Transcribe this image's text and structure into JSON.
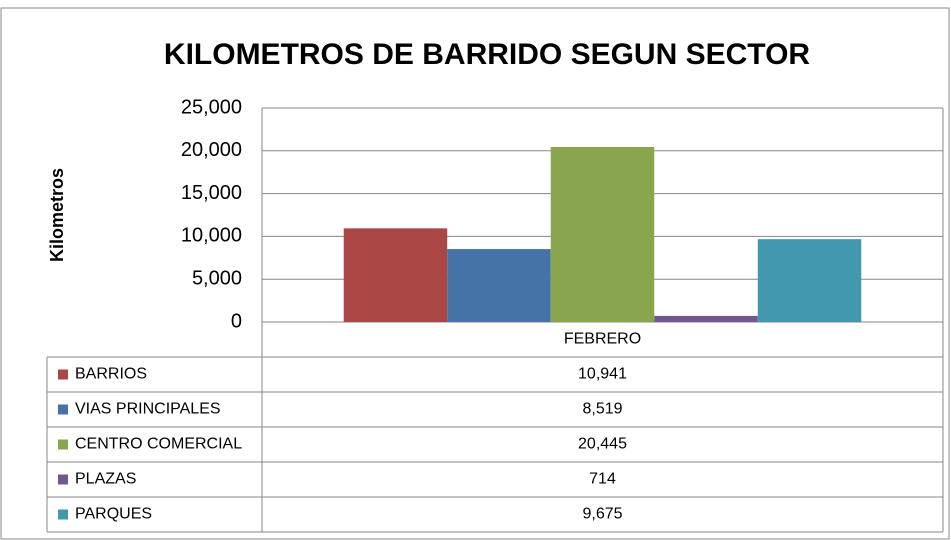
{
  "chart_data": {
    "type": "bar",
    "title": "KILOMETROS DE BARRIDO SEGUN SECTOR",
    "y_label": "Kilometros",
    "categories": [
      "FEBRERO"
    ],
    "series": [
      {
        "name": "BARRIOS",
        "color": "#aa4643",
        "values": [
          10941
        ],
        "value_labels": [
          "10,941"
        ]
      },
      {
        "name": "VIAS PRINCIPALES",
        "color": "#4572a7",
        "values": [
          8519
        ],
        "value_labels": [
          "8,519"
        ]
      },
      {
        "name": "CENTRO COMERCIAL",
        "color": "#89a54e",
        "values": [
          20445
        ],
        "value_labels": [
          "20,445"
        ]
      },
      {
        "name": "PLAZAS",
        "color": "#71588f",
        "values": [
          714
        ],
        "value_labels": [
          "714"
        ]
      },
      {
        "name": "PARQUES",
        "color": "#4198af",
        "values": [
          9675
        ],
        "value_labels": [
          "9,675"
        ]
      }
    ],
    "ylim": [
      0,
      25000
    ],
    "yticks": [
      0,
      {
        "value": 5000,
        "label": "5,000"
      },
      {
        "value": 10000,
        "label": "10,000"
      },
      {
        "value": 15000,
        "label": "15,000"
      },
      {
        "value": 20000,
        "label": "20,000"
      },
      {
        "value": 25000,
        "label": "25,000"
      }
    ],
    "grid": true
  }
}
